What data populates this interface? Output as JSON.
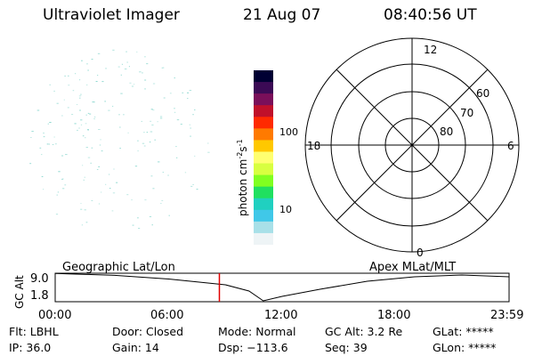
{
  "header": {
    "title": "Ultraviolet Imager",
    "date": "21 Aug 07",
    "time": "08:40:56 UT"
  },
  "colorbar": {
    "units_text": "photon cm",
    "units_exp1": "-2",
    "units_s": "s",
    "units_exp2": "-1",
    "tick_100": "100",
    "tick_10": "10",
    "colors": [
      "#000033",
      "#3b0a55",
      "#7a0f5a",
      "#c0102a",
      "#ff2a00",
      "#ff7a00",
      "#ffc800",
      "#ffff70",
      "#d8ff40",
      "#80ff20",
      "#20e060",
      "#20d0c0",
      "#40c8e8",
      "#a8e0e8",
      "#eef4f6"
    ]
  },
  "polar": {
    "label_12": "12",
    "label_18": "18",
    "label_6": "6",
    "label_0": "0",
    "label_60": "60",
    "label_70": "70",
    "label_80": "80"
  },
  "altitude": {
    "axis_label": "GC Alt",
    "y_max": "9.0",
    "y_min": "1.8",
    "left_caption": "Geographic Lat/Lon",
    "right_caption": "Apex MLat/MLT",
    "x_ticks": [
      "00:00",
      "06:00",
      "12:00",
      "18:00",
      "23:59"
    ],
    "marker_color": "#e00000",
    "line_color": "#000000"
  },
  "footer": {
    "row1": [
      "Flt: LBHL",
      "Door: Closed",
      "Mode: Normal",
      "GC Alt: 3.2 Re",
      "GLat: *****"
    ],
    "row2": [
      "IP: 36.0",
      "Gain: 14",
      "Dsp: −113.6",
      "Seq: 39",
      "GLon: *****"
    ]
  },
  "colors": {
    "speckle": "#8ed8d0",
    "background": "#ffffff"
  }
}
